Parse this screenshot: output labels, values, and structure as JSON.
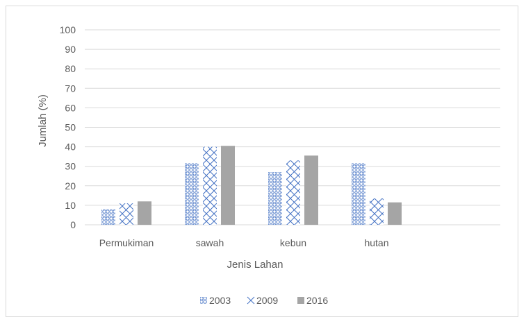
{
  "chart_data": {
    "type": "bar",
    "title": "",
    "xlabel": "Jenis Lahan",
    "ylabel": "Jumlah (%)",
    "ylim": [
      0,
      100
    ],
    "yticks": [
      "0",
      "10",
      "20",
      "30",
      "40",
      "50",
      "60",
      "70",
      "80",
      "90",
      "100"
    ],
    "categories": [
      "Permukiman",
      "sawah",
      "kebun",
      "hutan"
    ],
    "series": [
      {
        "name": "2003",
        "values": [
          8,
          31.5,
          27,
          31.5
        ]
      },
      {
        "name": "2009",
        "values": [
          11,
          40,
          33,
          13.5
        ]
      },
      {
        "name": "2016",
        "values": [
          12,
          40.5,
          35.5,
          11.5
        ]
      }
    ],
    "grid": true,
    "legend_position": "bottom",
    "colors": {
      "2003": "#4472c4",
      "2009": "#4472c4",
      "2016": "#a5a5a5",
      "grid": "#d9d9d9",
      "text": "#595959"
    }
  }
}
